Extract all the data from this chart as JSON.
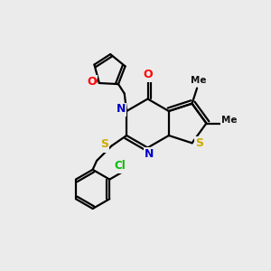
{
  "bg_color": "#ebebeb",
  "bond_color": "#000000",
  "bond_width": 1.6,
  "atom_colors": {
    "O": "#ff0000",
    "N": "#0000cc",
    "S": "#ccaa00",
    "Cl": "#00bb00",
    "C": "#000000"
  }
}
